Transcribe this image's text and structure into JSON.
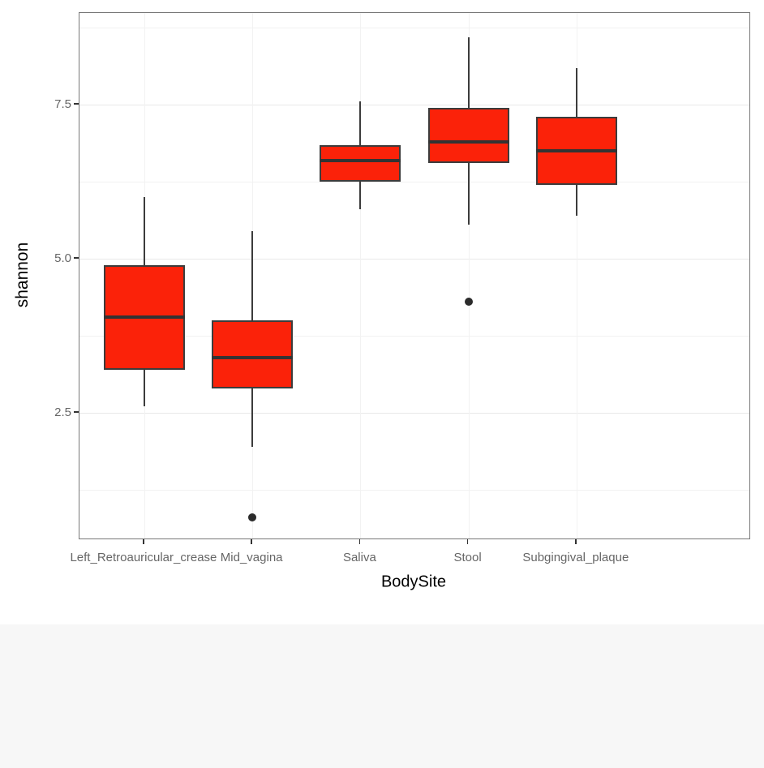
{
  "chart_data": {
    "type": "boxplot",
    "title": "",
    "xlabel": "BodySite",
    "ylabel": "shannon",
    "legend": "none",
    "grid": true,
    "categories": [
      "Left_Retroauricular_crease",
      "Mid_vagina",
      "Saliva",
      "Stool",
      "Subgingival_plaque"
    ],
    "boxes": [
      {
        "category": "Left_Retroauricular_crease",
        "whisker_low": 2.6,
        "q1": 3.2,
        "median": 4.05,
        "q3": 4.9,
        "whisker_high": 6.0,
        "outliers": []
      },
      {
        "category": "Mid_vagina",
        "whisker_low": 1.95,
        "q1": 2.9,
        "median": 3.4,
        "q3": 4.0,
        "whisker_high": 5.45,
        "outliers": [
          0.8
        ]
      },
      {
        "category": "Saliva",
        "whisker_low": 5.8,
        "q1": 6.25,
        "median": 6.6,
        "q3": 6.85,
        "whisker_high": 7.55,
        "outliers": []
      },
      {
        "category": "Stool",
        "whisker_low": 5.55,
        "q1": 6.55,
        "median": 6.9,
        "q3": 7.45,
        "whisker_high": 8.6,
        "outliers": [
          4.3
        ]
      },
      {
        "category": "Subgingival_plaque",
        "whisker_low": 5.7,
        "q1": 6.2,
        "median": 6.75,
        "q3": 7.3,
        "whisker_high": 8.1,
        "outliers": []
      }
    ],
    "y_ticks": [
      {
        "label": "2.5",
        "value": 2.5
      },
      {
        "label": "5.0",
        "value": 5.0
      },
      {
        "label": "7.5",
        "value": 7.5
      }
    ],
    "y_minor": [
      1.25,
      3.75,
      6.25,
      8.75
    ],
    "ylim": [
      0.46,
      8.99
    ],
    "box_width_fraction": 0.75,
    "category_expansion": 0.6,
    "colors": {
      "box_fill": "#FB2209",
      "box_border": "#3C3C3C",
      "median": "#333333",
      "whisker": "#3C3C3C",
      "outlier": "#2B2B2B",
      "grid_major": "#E8E8E8",
      "grid_minor": "#F2F2F2",
      "panel_border": "#777777",
      "tick_mark": "#333333",
      "tick_label": "#666666",
      "axis_title": "#000000",
      "panel_bg": "#FFFFFF",
      "page_bg": "#FFFFFF",
      "bottom_band": "#F7F7F7"
    }
  }
}
